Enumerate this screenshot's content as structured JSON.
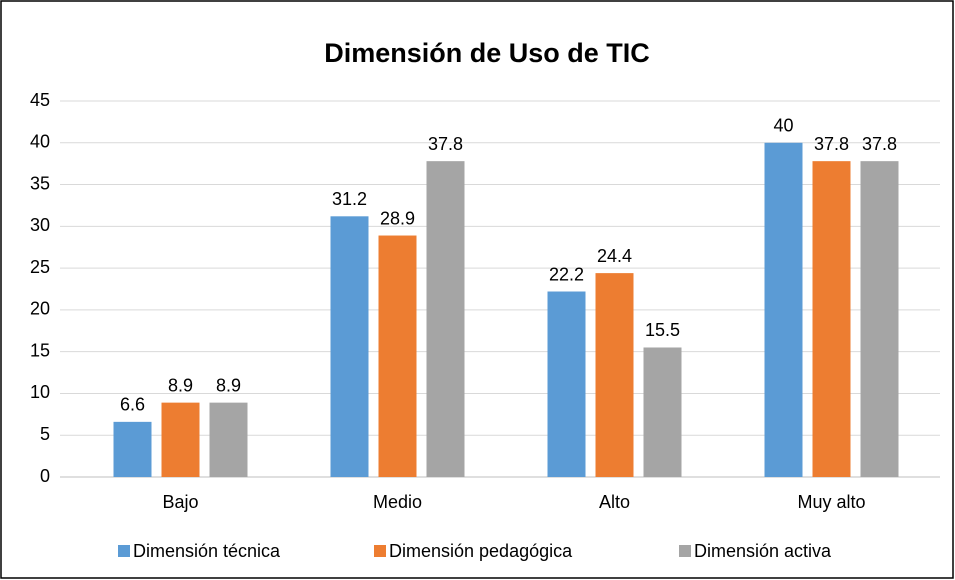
{
  "chart_data": {
    "type": "bar",
    "title": "Dimensión de Uso de TIC",
    "categories": [
      "Bajo",
      "Medio",
      "Alto",
      "Muy alto"
    ],
    "series": [
      {
        "name": "Dimensión técnica",
        "color": "#5b9bd5",
        "values": [
          6.6,
          31.2,
          22.2,
          40
        ]
      },
      {
        "name": "Dimensión pedagógica",
        "color": "#ed7d31",
        "values": [
          8.9,
          28.9,
          24.4,
          37.8
        ]
      },
      {
        "name": "Dimensión activa",
        "color": "#a5a5a5",
        "values": [
          8.9,
          37.8,
          15.5,
          37.8
        ]
      }
    ],
    "ylim": [
      0,
      45
    ],
    "yticks": [
      0,
      5,
      10,
      15,
      20,
      25,
      30,
      35,
      40,
      45
    ],
    "grid": true,
    "legend": "bottom"
  }
}
